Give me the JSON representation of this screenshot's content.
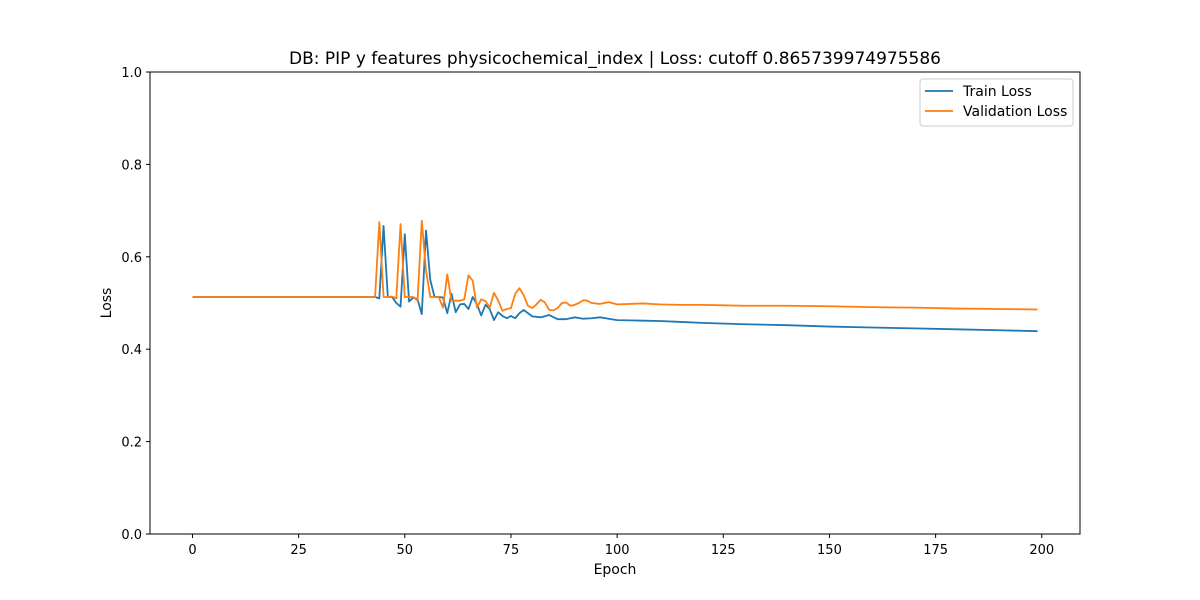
{
  "chart_data": {
    "type": "line",
    "title": "DB: PIP y features physicochemical_index | Loss: cutoff 0.865739974975586",
    "xlabel": "Epoch",
    "ylabel": "Loss",
    "xlim": [
      -10,
      209
    ],
    "ylim": [
      0.0,
      1.0
    ],
    "xticks": [
      0,
      25,
      50,
      75,
      100,
      125,
      150,
      175,
      200
    ],
    "yticks": [
      0.0,
      0.2,
      0.4,
      0.6,
      0.8,
      1.0
    ],
    "xtick_labels": [
      "0",
      "25",
      "50",
      "75",
      "100",
      "125",
      "150",
      "175",
      "200"
    ],
    "ytick_labels": [
      "0.0",
      "0.2",
      "0.4",
      "0.6",
      "0.8",
      "1.0"
    ],
    "grid": false,
    "legend_position": "upper right",
    "series": [
      {
        "name": "Train Loss",
        "color": "#1f77b4",
        "points": [
          [
            0,
            0.513
          ],
          [
            43,
            0.513
          ],
          [
            44,
            0.51
          ],
          [
            45,
            0.667
          ],
          [
            46,
            0.513
          ],
          [
            47,
            0.513
          ],
          [
            48,
            0.5
          ],
          [
            49,
            0.492
          ],
          [
            50,
            0.649
          ],
          [
            51,
            0.503
          ],
          [
            52,
            0.512
          ],
          [
            53,
            0.508
          ],
          [
            54,
            0.476
          ],
          [
            55,
            0.657
          ],
          [
            56,
            0.55
          ],
          [
            57,
            0.513
          ],
          [
            58,
            0.513
          ],
          [
            59,
            0.512
          ],
          [
            60,
            0.478
          ],
          [
            61,
            0.52
          ],
          [
            62,
            0.48
          ],
          [
            63,
            0.497
          ],
          [
            64,
            0.498
          ],
          [
            65,
            0.487
          ],
          [
            66,
            0.513
          ],
          [
            67,
            0.497
          ],
          [
            68,
            0.473
          ],
          [
            69,
            0.496
          ],
          [
            70,
            0.487
          ],
          [
            71,
            0.463
          ],
          [
            72,
            0.48
          ],
          [
            73,
            0.472
          ],
          [
            74,
            0.467
          ],
          [
            75,
            0.472
          ],
          [
            76,
            0.467
          ],
          [
            77,
            0.478
          ],
          [
            78,
            0.485
          ],
          [
            80,
            0.471
          ],
          [
            82,
            0.469
          ],
          [
            84,
            0.474
          ],
          [
            86,
            0.465
          ],
          [
            88,
            0.465
          ],
          [
            90,
            0.469
          ],
          [
            92,
            0.466
          ],
          [
            94,
            0.467
          ],
          [
            96,
            0.469
          ],
          [
            98,
            0.466
          ],
          [
            100,
            0.463
          ],
          [
            105,
            0.462
          ],
          [
            110,
            0.461
          ],
          [
            115,
            0.459
          ],
          [
            120,
            0.457
          ],
          [
            130,
            0.454
          ],
          [
            140,
            0.452
          ],
          [
            150,
            0.449
          ],
          [
            160,
            0.447
          ],
          [
            170,
            0.445
          ],
          [
            180,
            0.443
          ],
          [
            190,
            0.441
          ],
          [
            199,
            0.439
          ]
        ]
      },
      {
        "name": "Validation Loss",
        "color": "#ff7f0e",
        "points": [
          [
            0,
            0.513
          ],
          [
            43,
            0.513
          ],
          [
            44,
            0.675
          ],
          [
            45,
            0.513
          ],
          [
            46,
            0.513
          ],
          [
            47,
            0.514
          ],
          [
            48,
            0.51
          ],
          [
            49,
            0.671
          ],
          [
            50,
            0.513
          ],
          [
            51,
            0.513
          ],
          [
            52,
            0.513
          ],
          [
            53,
            0.505
          ],
          [
            54,
            0.678
          ],
          [
            55,
            0.57
          ],
          [
            56,
            0.513
          ],
          [
            57,
            0.513
          ],
          [
            58,
            0.513
          ],
          [
            59,
            0.49
          ],
          [
            60,
            0.562
          ],
          [
            61,
            0.505
          ],
          [
            62,
            0.505
          ],
          [
            63,
            0.505
          ],
          [
            64,
            0.508
          ],
          [
            65,
            0.56
          ],
          [
            66,
            0.548
          ],
          [
            67,
            0.49
          ],
          [
            68,
            0.508
          ],
          [
            69,
            0.504
          ],
          [
            70,
            0.49
          ],
          [
            71,
            0.522
          ],
          [
            72,
            0.505
          ],
          [
            73,
            0.483
          ],
          [
            74,
            0.487
          ],
          [
            75,
            0.489
          ],
          [
            76,
            0.52
          ],
          [
            77,
            0.532
          ],
          [
            78,
            0.517
          ],
          [
            79,
            0.494
          ],
          [
            80,
            0.489
          ],
          [
            81,
            0.497
          ],
          [
            82,
            0.507
          ],
          [
            83,
            0.501
          ],
          [
            84,
            0.485
          ],
          [
            85,
            0.484
          ],
          [
            86,
            0.489
          ],
          [
            87,
            0.5
          ],
          [
            88,
            0.501
          ],
          [
            89,
            0.494
          ],
          [
            90,
            0.496
          ],
          [
            91,
            0.5
          ],
          [
            92,
            0.506
          ],
          [
            93,
            0.505
          ],
          [
            94,
            0.5
          ],
          [
            96,
            0.498
          ],
          [
            98,
            0.502
          ],
          [
            100,
            0.497
          ],
          [
            103,
            0.498
          ],
          [
            106,
            0.499
          ],
          [
            110,
            0.497
          ],
          [
            115,
            0.496
          ],
          [
            120,
            0.496
          ],
          [
            125,
            0.495
          ],
          [
            130,
            0.494
          ],
          [
            140,
            0.494
          ],
          [
            150,
            0.493
          ],
          [
            160,
            0.491
          ],
          [
            170,
            0.49
          ],
          [
            180,
            0.488
          ],
          [
            190,
            0.487
          ],
          [
            199,
            0.486
          ]
        ]
      }
    ]
  }
}
